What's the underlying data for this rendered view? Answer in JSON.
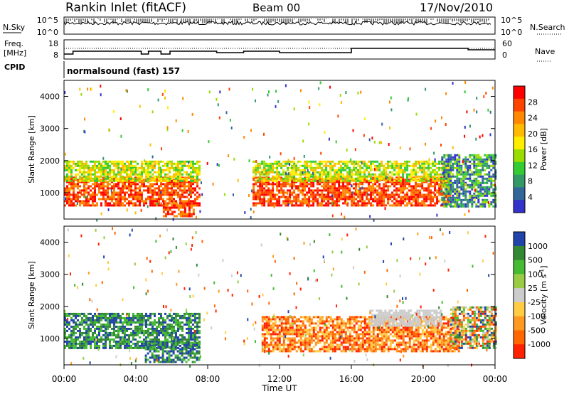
{
  "header": {
    "station": "Rankin Inlet (fitACF)",
    "beam": "Beam 00",
    "date": "17/Nov/2010"
  },
  "panels": {
    "nsky_label": "N.Sky",
    "nsearch_label": "N.Search",
    "counts_ticks": [
      "10^5",
      "10^0"
    ],
    "freq_label_1": "Freq.",
    "freq_label_2": "[MHz]",
    "freq_ticks": [
      "18",
      "8"
    ],
    "nave_label": "Nave",
    "nave_ticks": [
      "60",
      "0"
    ],
    "cpid_label": "CPID",
    "cpid_value": "normalsound (fast) 157"
  },
  "chart_data": [
    {
      "type": "heatmap",
      "name": "power",
      "ylabel": "Slant Range [km]",
      "ylim": [
        180,
        4500
      ],
      "yticks": [
        1000,
        2000,
        3000,
        4000
      ],
      "xlim": [
        0,
        24
      ],
      "colorbar": {
        "label": "Power [dB]",
        "ticks": [
          "28",
          "24",
          "20",
          "16",
          "12",
          "8",
          "4"
        ],
        "colors": [
          "#ff0000",
          "#ff4400",
          "#ff8800",
          "#ffbb00",
          "#ffee00",
          "#99dd00",
          "#33cc33",
          "#339966",
          "#336699",
          "#3333cc"
        ]
      },
      "bands": [
        {
          "t0": 0.0,
          "t1": 7.6,
          "r0": 600,
          "r1": 1500,
          "level": "high"
        },
        {
          "t0": 0.0,
          "t1": 7.6,
          "r0": 1400,
          "r1": 2000,
          "level": "mid"
        },
        {
          "t0": 5.5,
          "t1": 7.2,
          "r0": 250,
          "r1": 700,
          "level": "high"
        },
        {
          "t0": 10.5,
          "t1": 21.5,
          "r0": 600,
          "r1": 1500,
          "level": "high"
        },
        {
          "t0": 10.5,
          "t1": 21.5,
          "r0": 1400,
          "r1": 2000,
          "level": "mid"
        },
        {
          "t0": 21.0,
          "t1": 24.0,
          "r0": 600,
          "r1": 2200,
          "level": "low"
        }
      ]
    },
    {
      "type": "heatmap",
      "name": "velocity",
      "ylabel": "Slant Range [km]",
      "ylim": [
        180,
        4500
      ],
      "yticks": [
        1000,
        2000,
        3000,
        4000
      ],
      "xlim": [
        0,
        24
      ],
      "xticks": [
        "00:00",
        "04:00",
        "08:00",
        "12:00",
        "16:00",
        "20:00",
        "00:00"
      ],
      "xlabel": "Time UT",
      "colorbar": {
        "label": "Velocity [m s^-1]",
        "ticks": [
          "1000",
          "500",
          "100",
          "25",
          "-25",
          "-100",
          "-500",
          "-1000"
        ],
        "colors": [
          "#2244aa",
          "#338833",
          "#44bb33",
          "#99cc44",
          "#cccccc",
          "#ffcc44",
          "#ff9922",
          "#ff6600",
          "#ff2200"
        ]
      },
      "bands": [
        {
          "t0": 0.0,
          "t1": 7.5,
          "r0": 700,
          "r1": 1800,
          "level": "positive"
        },
        {
          "t0": 4.5,
          "t1": 7.5,
          "r0": 250,
          "r1": 900,
          "level": "positive"
        },
        {
          "t0": 11.0,
          "t1": 22.0,
          "r0": 600,
          "r1": 1700,
          "level": "negative"
        },
        {
          "t0": 17.0,
          "t1": 21.0,
          "r0": 1400,
          "r1": 1900,
          "level": "neutral"
        },
        {
          "t0": 21.5,
          "t1": 24.0,
          "r0": 700,
          "r1": 2000,
          "level": "mixed"
        }
      ]
    }
  ]
}
